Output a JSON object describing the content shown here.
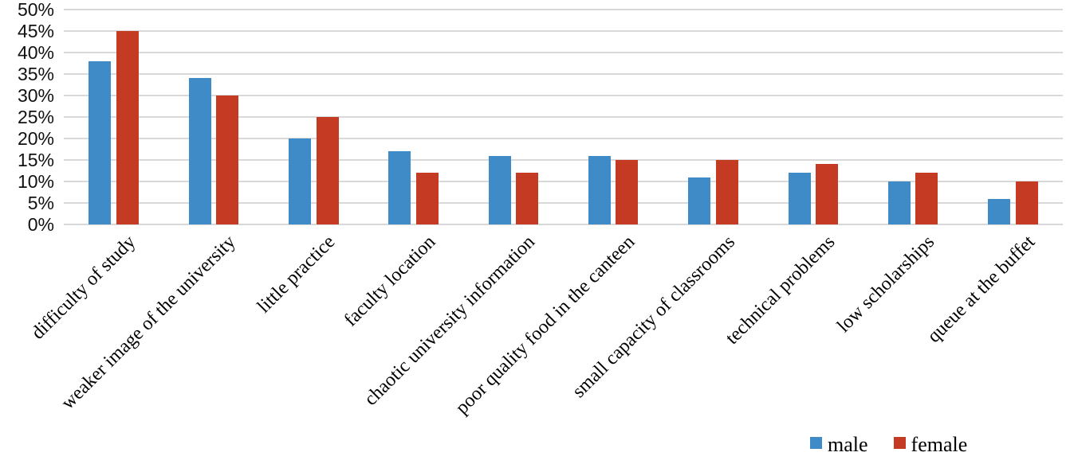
{
  "chart_data": {
    "type": "bar",
    "title": "",
    "xlabel": "",
    "ylabel": "",
    "categories": [
      "difficulty of study",
      "weaker image of the university",
      "little practice",
      "faculty location",
      "chaotic university information",
      "poor quality food in the canteen",
      "small capacity of classrooms",
      "technical problems",
      "low scholarships",
      "queue at the buffet"
    ],
    "series": [
      {
        "name": "male",
        "color": "#3e8bc8",
        "values": [
          38,
          34,
          20,
          17,
          16,
          16,
          11,
          12,
          10,
          6
        ]
      },
      {
        "name": "female",
        "color": "#c53a22",
        "values": [
          45,
          30,
          25,
          12,
          12,
          15,
          15,
          14,
          12,
          10
        ]
      }
    ],
    "ylim": [
      0,
      50
    ],
    "ytick_step": 5,
    "ytick_labels": [
      "0%",
      "5%",
      "10%",
      "15%",
      "20%",
      "25%",
      "30%",
      "35%",
      "40%",
      "45%",
      "50%"
    ],
    "grid": true,
    "gridline_color": "#d9d9d9",
    "legend_position": "bottom-right"
  },
  "legend": {
    "items": [
      {
        "label": "male"
      },
      {
        "label": "female"
      }
    ]
  }
}
